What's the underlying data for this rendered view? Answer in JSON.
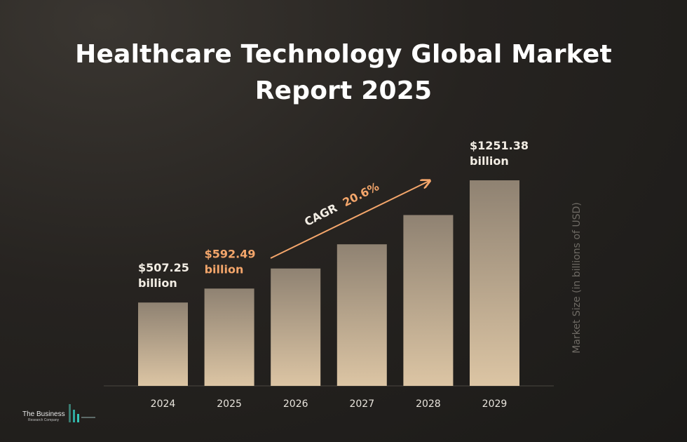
{
  "title_lines": [
    "Healthcare Technology Global Market",
    "Report 2025"
  ],
  "chart_data": {
    "type": "bar",
    "title": "Healthcare Technology Global Market Report 2025",
    "categories": [
      "2024",
      "2025",
      "2026",
      "2027",
      "2028",
      "2029"
    ],
    "values": [
      507.25,
      592.49,
      714.5,
      862.0,
      1040.0,
      1251.38
    ],
    "ylabel": "Market Size (in billions of USD)",
    "xlabel": "",
    "data_labels": [
      {
        "index": 0,
        "value": "$507.25",
        "unit": "billion",
        "color": "#f2ede4"
      },
      {
        "index": 1,
        "value": "$592.49",
        "unit": "billion",
        "color": "#f4a66b"
      },
      {
        "index": 5,
        "value": "$1251.38",
        "unit": "billion",
        "color": "#f2ede4"
      }
    ],
    "annotation": {
      "prefix": "CAGR",
      "value": "20.6%"
    },
    "grid": false,
    "legend": "none"
  },
  "colors": {
    "bar_top": "#8f8272",
    "bar_bottom": "#dcc5a4",
    "accent": "#f4a66b",
    "text": "#f2ede4",
    "axis_label": "#6e6a64"
  },
  "logo": {
    "name": "The Business",
    "sub": "Research Company"
  }
}
